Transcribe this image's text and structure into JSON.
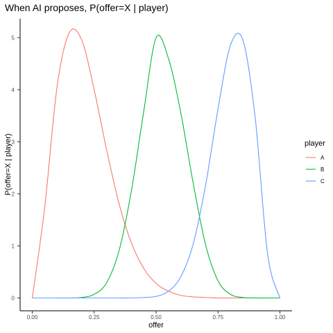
{
  "chart_data": {
    "type": "line",
    "title": "When AI proposes, P(offer=X | player)",
    "xlabel": "offer",
    "ylabel": "P(offer=X | player)",
    "xlim": [
      0.0,
      1.0
    ],
    "ylim": [
      0,
      5.2
    ],
    "x_ticks": [
      "0.00",
      "0.25",
      "0.50",
      "0.75",
      "1.00"
    ],
    "x_tick_values": [
      0,
      0.25,
      0.5,
      0.75,
      1.0
    ],
    "y_ticks": [
      "0",
      "1",
      "2",
      "3",
      "4",
      "5"
    ],
    "y_tick_values": [
      0,
      1,
      2,
      3,
      4,
      5
    ],
    "grid": false,
    "legend": {
      "title": "player",
      "placement": "right"
    },
    "x": [
      0.0,
      0.05,
      0.1,
      0.15,
      0.2,
      0.25,
      0.3,
      0.35,
      0.4,
      0.45,
      0.5,
      0.55,
      0.6,
      0.65,
      0.7,
      0.75,
      0.8,
      0.85,
      0.9,
      0.95,
      1.0
    ],
    "series": [
      {
        "name": "A",
        "color": "#F8766D",
        "values": [
          0.0,
          1.73,
          4.05,
          5.1,
          4.95,
          4.0,
          2.85,
          1.82,
          1.06,
          0.57,
          0.28,
          0.13,
          0.05,
          0.02,
          0.01,
          0.0,
          0.0,
          0.0,
          0.0,
          0.0,
          0.0
        ]
      },
      {
        "name": "B",
        "color": "#00BA38",
        "values": [
          0.0,
          0.0,
          0.0,
          0.0,
          0.01,
          0.07,
          0.29,
          0.9,
          2.05,
          3.58,
          5.0,
          4.6,
          3.55,
          2.2,
          1.02,
          0.33,
          0.07,
          0.01,
          0.0,
          0.0,
          0.0
        ]
      },
      {
        "name": "C",
        "color": "#619CFF",
        "values": [
          0.0,
          0.0,
          0.0,
          0.0,
          0.0,
          0.0,
          0.0,
          0.0,
          0.0,
          0.01,
          0.03,
          0.13,
          0.41,
          1.04,
          2.17,
          3.63,
          4.85,
          4.96,
          3.47,
          0.85,
          0.0
        ]
      }
    ]
  }
}
